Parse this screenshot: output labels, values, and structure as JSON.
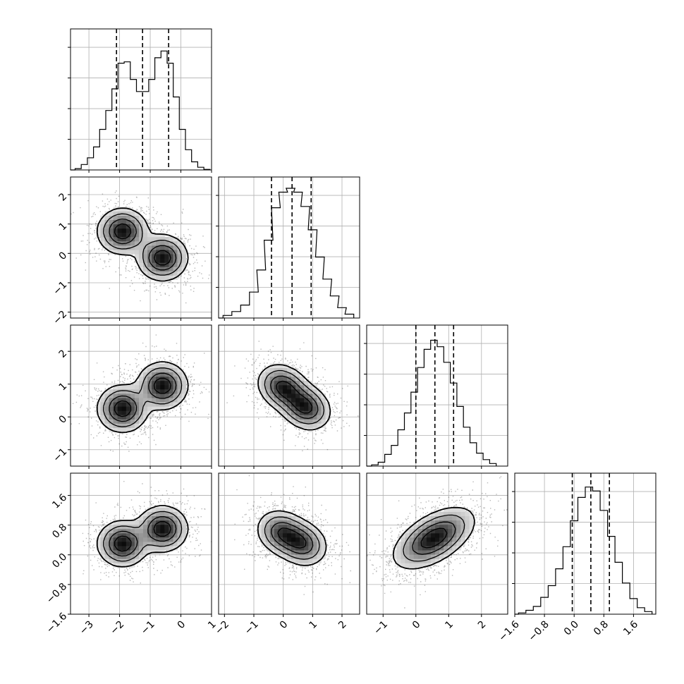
{
  "chart_data": {
    "type": "corner",
    "n_params": 4,
    "params": [
      {
        "range": [
          -3.6,
          1.0
        ],
        "ticks": [
          -3,
          -2,
          -1,
          0,
          1
        ],
        "tick_labels": [
          "−3",
          "−2",
          "−1",
          "0",
          "1"
        ],
        "quantiles": [
          -2.1,
          -1.25,
          -0.4
        ],
        "hist_max": 4.8,
        "hist": [
          [
            -3.35,
            0.05
          ],
          [
            -3.15,
            0.2
          ],
          [
            -2.95,
            0.45
          ],
          [
            -2.75,
            0.85
          ],
          [
            -2.55,
            1.5
          ],
          [
            -2.35,
            2.2
          ],
          [
            -2.15,
            3.0
          ],
          [
            -1.95,
            3.95
          ],
          [
            -1.75,
            4.0
          ],
          [
            -1.55,
            3.35
          ],
          [
            -1.35,
            2.9
          ],
          [
            -1.15,
            2.9
          ],
          [
            -0.95,
            3.35
          ],
          [
            -0.75,
            4.15
          ],
          [
            -0.55,
            4.4
          ],
          [
            -0.35,
            3.95
          ],
          [
            -0.15,
            2.7
          ],
          [
            0.05,
            1.5
          ],
          [
            0.25,
            0.75
          ],
          [
            0.45,
            0.3
          ],
          [
            0.65,
            0.1
          ],
          [
            0.85,
            0.02
          ]
        ]
      },
      {
        "range": [
          -2.2,
          2.6
        ],
        "ticks": [
          -2,
          -1,
          0,
          1,
          2
        ],
        "tick_labels": [
          "−2",
          "−1",
          "0",
          "1",
          "2"
        ],
        "quantiles": [
          -0.4,
          0.3,
          0.95
        ],
        "hist_max": 1,
        "hist": [
          [
            -1.9,
            0.02
          ],
          [
            -1.6,
            0.05
          ],
          [
            -1.3,
            0.1
          ],
          [
            -1.0,
            0.2
          ],
          [
            -0.75,
            0.37
          ],
          [
            -0.5,
            0.6
          ],
          [
            -0.25,
            0.85
          ],
          [
            0.0,
            0.97
          ],
          [
            0.25,
            1.0
          ],
          [
            0.5,
            0.97
          ],
          [
            0.75,
            0.86
          ],
          [
            1.0,
            0.68
          ],
          [
            1.25,
            0.47
          ],
          [
            1.5,
            0.3
          ],
          [
            1.75,
            0.17
          ],
          [
            2.0,
            0.08
          ],
          [
            2.25,
            0.03
          ]
        ]
      },
      {
        "range": [
          -1.5,
          2.8
        ],
        "ticks": [
          -1,
          0,
          1,
          2
        ],
        "tick_labels": [
          "−1",
          "0",
          "1",
          "2"
        ],
        "quantiles": [
          0.0,
          0.58,
          1.15
        ],
        "hist_max": 1,
        "hist": [
          [
            -1.25,
            0.01
          ],
          [
            -1.05,
            0.03
          ],
          [
            -0.85,
            0.09
          ],
          [
            -0.65,
            0.16
          ],
          [
            -0.45,
            0.28
          ],
          [
            -0.25,
            0.41
          ],
          [
            -0.05,
            0.57
          ],
          [
            0.15,
            0.76
          ],
          [
            0.35,
            0.9
          ],
          [
            0.55,
            0.97
          ],
          [
            0.75,
            0.92
          ],
          [
            0.95,
            0.8
          ],
          [
            1.15,
            0.64
          ],
          [
            1.35,
            0.46
          ],
          [
            1.55,
            0.3
          ],
          [
            1.75,
            0.18
          ],
          [
            1.95,
            0.1
          ],
          [
            2.15,
            0.05
          ],
          [
            2.35,
            0.02
          ]
        ]
      },
      {
        "range": [
          -1.6,
          2.2
        ],
        "ticks": [
          -1.6,
          -0.8,
          0.0,
          0.8,
          1.6
        ],
        "tick_labels": [
          "−1.6",
          "−0.8",
          "0.0",
          "0.8",
          "1.6"
        ],
        "quantiles": [
          -0.05,
          0.45,
          0.95
        ],
        "hist_max": 1,
        "hist": [
          [
            -1.4,
            0.01
          ],
          [
            -1.2,
            0.03
          ],
          [
            -1.0,
            0.06
          ],
          [
            -0.8,
            0.13
          ],
          [
            -0.6,
            0.22
          ],
          [
            -0.4,
            0.35
          ],
          [
            -0.2,
            0.52
          ],
          [
            0.0,
            0.72
          ],
          [
            0.2,
            0.9
          ],
          [
            0.4,
            0.98
          ],
          [
            0.6,
            0.95
          ],
          [
            0.8,
            0.8
          ],
          [
            1.0,
            0.6
          ],
          [
            1.2,
            0.4
          ],
          [
            1.4,
            0.24
          ],
          [
            1.6,
            0.12
          ],
          [
            1.8,
            0.05
          ],
          [
            2.0,
            0.02
          ]
        ]
      }
    ],
    "panels_2d": [
      {
        "row": 1,
        "col": 0,
        "modes": [
          {
            "center": [
              -1.9,
              0.75
            ],
            "sigma": [
              0.4,
              0.38
            ],
            "rho": 0.0,
            "w": 1
          },
          {
            "center": [
              -0.6,
              -0.15
            ],
            "sigma": [
              0.4,
              0.38
            ],
            "rho": 0.0,
            "w": 1
          }
        ]
      },
      {
        "row": 2,
        "col": 0,
        "modes": [
          {
            "center": [
              -1.9,
              0.25
            ],
            "sigma": [
              0.4,
              0.35
            ],
            "rho": 0.0,
            "w": 1
          },
          {
            "center": [
              -0.6,
              0.95
            ],
            "sigma": [
              0.4,
              0.35
            ],
            "rho": 0.0,
            "w": 1
          }
        ]
      },
      {
        "row": 2,
        "col": 1,
        "modes": [
          {
            "center": [
              0.0,
              0.9
            ],
            "sigma": [
              0.42,
              0.34
            ],
            "rho": -0.2,
            "w": 1
          },
          {
            "center": [
              0.75,
              0.3
            ],
            "sigma": [
              0.42,
              0.34
            ],
            "rho": -0.2,
            "w": 1
          }
        ]
      },
      {
        "row": 3,
        "col": 0,
        "modes": [
          {
            "center": [
              -1.9,
              0.3
            ],
            "sigma": [
              0.4,
              0.3
            ],
            "rho": 0.0,
            "w": 1
          },
          {
            "center": [
              -0.6,
              0.7
            ],
            "sigma": [
              0.4,
              0.3
            ],
            "rho": 0.0,
            "w": 1
          }
        ]
      },
      {
        "row": 3,
        "col": 1,
        "modes": [
          {
            "center": [
              -0.05,
              0.6
            ],
            "sigma": [
              0.42,
              0.3
            ],
            "rho": -0.15,
            "w": 1
          },
          {
            "center": [
              0.65,
              0.3
            ],
            "sigma": [
              0.42,
              0.3
            ],
            "rho": -0.15,
            "w": 1
          }
        ]
      },
      {
        "row": 3,
        "col": 2,
        "modes": [
          {
            "center": [
              0.55,
              0.45
            ],
            "sigma": [
              0.6,
              0.4
            ],
            "rho": 0.55,
            "w": 1
          }
        ]
      }
    ],
    "contour_levels": [
      0.12,
      0.3,
      0.55,
      0.8
    ],
    "grid": true,
    "xlabels": [],
    "ylabels": []
  }
}
